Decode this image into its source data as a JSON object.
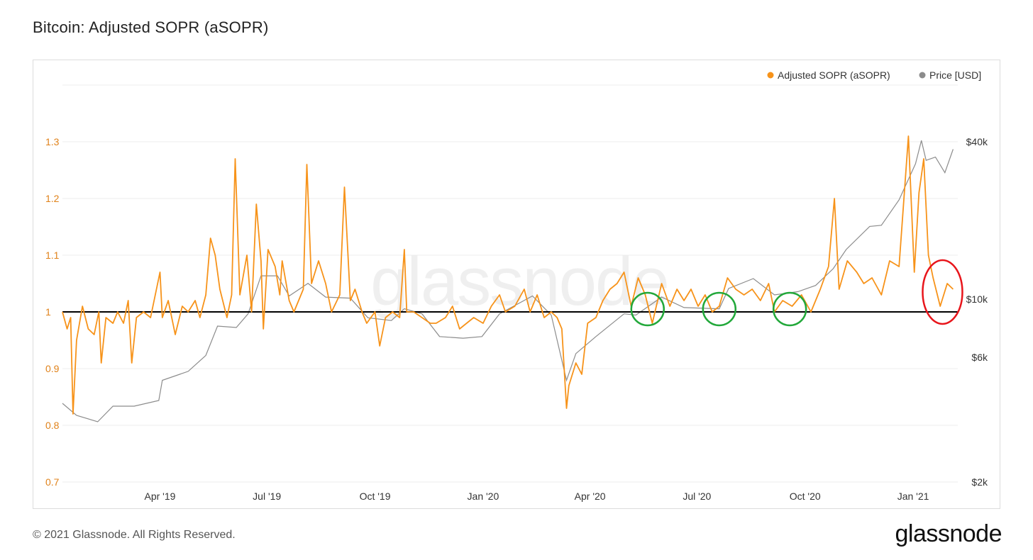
{
  "header": {
    "title": "Bitcoin: Adjusted SOPR (aSOPR)"
  },
  "footer": {
    "copyright": "© 2021 Glassnode. All Rights Reserved.",
    "logo": "glassnode"
  },
  "watermark": "glassnode",
  "colors": {
    "asopr": "#f7931a",
    "price": "#8c8c8c",
    "tick_left": "#e0821a",
    "baseline": "#000000",
    "circle_green": "#22a83a",
    "circle_red": "#e8151b"
  },
  "chart_data": {
    "type": "line",
    "title": "Bitcoin: Adjusted SOPR (aSOPR)",
    "x_range": [
      "2019-01-08",
      "2021-02-08"
    ],
    "x_ticks": [
      {
        "label": "Apr '19",
        "date": "2019-04-01"
      },
      {
        "label": "Jul '19",
        "date": "2019-07-01"
      },
      {
        "label": "Oct '19",
        "date": "2019-10-01"
      },
      {
        "label": "Jan '20",
        "date": "2020-01-01"
      },
      {
        "label": "Apr '20",
        "date": "2020-04-01"
      },
      {
        "label": "Jul '20",
        "date": "2020-07-01"
      },
      {
        "label": "Oct '20",
        "date": "2020-10-01"
      },
      {
        "label": "Jan '21",
        "date": "2021-01-01"
      }
    ],
    "y_left": {
      "ticks": [
        {
          "v": 0.7,
          "label": "0.7"
        },
        {
          "v": 0.8,
          "label": "0.8"
        },
        {
          "v": 0.9,
          "label": "0.9"
        },
        {
          "v": 1.0,
          "label": "1"
        },
        {
          "v": 1.1,
          "label": "1.1"
        },
        {
          "v": 1.2,
          "label": "1.2"
        },
        {
          "v": 1.3,
          "label": "1.3"
        }
      ],
      "range": [
        0.7,
        1.4
      ]
    },
    "y_right": {
      "scale": "log",
      "ticks": [
        {
          "v": 2000,
          "label": "$2k"
        },
        {
          "v": 6000,
          "label": "$6k"
        },
        {
          "v": 10000,
          "label": "$10k"
        },
        {
          "v": 40000,
          "label": "$40k"
        }
      ],
      "range": [
        2000,
        66000
      ]
    },
    "legend": {
      "placement": "top-right"
    },
    "grid": true,
    "reference_line": {
      "y": 1.0
    },
    "series": [
      {
        "name": "Adjusted SOPR (aSOPR)",
        "axis": "left",
        "points": [
          [
            "2019-01-08",
            1.0
          ],
          [
            "2019-01-12",
            0.97
          ],
          [
            "2019-01-15",
            0.99
          ],
          [
            "2019-01-17",
            0.82
          ],
          [
            "2019-01-20",
            0.95
          ],
          [
            "2019-01-25",
            1.01
          ],
          [
            "2019-01-30",
            0.97
          ],
          [
            "2019-02-04",
            0.96
          ],
          [
            "2019-02-08",
            1.0
          ],
          [
            "2019-02-10",
            0.91
          ],
          [
            "2019-02-14",
            0.99
          ],
          [
            "2019-02-20",
            0.98
          ],
          [
            "2019-02-24",
            1.0
          ],
          [
            "2019-03-01",
            0.98
          ],
          [
            "2019-03-05",
            1.02
          ],
          [
            "2019-03-08",
            0.91
          ],
          [
            "2019-03-12",
            0.99
          ],
          [
            "2019-03-18",
            1.0
          ],
          [
            "2019-03-24",
            0.99
          ],
          [
            "2019-04-01",
            1.07
          ],
          [
            "2019-04-03",
            0.99
          ],
          [
            "2019-04-08",
            1.02
          ],
          [
            "2019-04-14",
            0.96
          ],
          [
            "2019-04-20",
            1.01
          ],
          [
            "2019-04-25",
            1.0
          ],
          [
            "2019-05-01",
            1.02
          ],
          [
            "2019-05-05",
            0.99
          ],
          [
            "2019-05-10",
            1.03
          ],
          [
            "2019-05-14",
            1.13
          ],
          [
            "2019-05-18",
            1.1
          ],
          [
            "2019-05-22",
            1.04
          ],
          [
            "2019-05-28",
            0.99
          ],
          [
            "2019-06-01",
            1.03
          ],
          [
            "2019-06-04",
            1.27
          ],
          [
            "2019-06-08",
            1.03
          ],
          [
            "2019-06-14",
            1.1
          ],
          [
            "2019-06-18",
            1.0
          ],
          [
            "2019-06-22",
            1.19
          ],
          [
            "2019-06-26",
            1.09
          ],
          [
            "2019-06-28",
            0.97
          ],
          [
            "2019-07-02",
            1.11
          ],
          [
            "2019-07-08",
            1.08
          ],
          [
            "2019-07-12",
            1.03
          ],
          [
            "2019-07-14",
            1.09
          ],
          [
            "2019-07-20",
            1.02
          ],
          [
            "2019-07-24",
            1.0
          ],
          [
            "2019-08-01",
            1.04
          ],
          [
            "2019-08-04",
            1.26
          ],
          [
            "2019-08-08",
            1.05
          ],
          [
            "2019-08-14",
            1.09
          ],
          [
            "2019-08-20",
            1.05
          ],
          [
            "2019-08-25",
            1.0
          ],
          [
            "2019-09-01",
            1.03
          ],
          [
            "2019-09-05",
            1.22
          ],
          [
            "2019-09-10",
            1.02
          ],
          [
            "2019-09-14",
            1.04
          ],
          [
            "2019-09-20",
            1.0
          ],
          [
            "2019-09-24",
            0.98
          ],
          [
            "2019-10-01",
            1.0
          ],
          [
            "2019-10-05",
            0.94
          ],
          [
            "2019-10-10",
            0.99
          ],
          [
            "2019-10-16",
            1.0
          ],
          [
            "2019-10-22",
            0.99
          ],
          [
            "2019-10-26",
            1.11
          ],
          [
            "2019-10-28",
            1.0
          ],
          [
            "2019-11-03",
            1.0
          ],
          [
            "2019-11-10",
            0.99
          ],
          [
            "2019-11-17",
            0.98
          ],
          [
            "2019-11-22",
            0.98
          ],
          [
            "2019-11-30",
            0.99
          ],
          [
            "2019-12-06",
            1.01
          ],
          [
            "2019-12-12",
            0.97
          ],
          [
            "2019-12-18",
            0.98
          ],
          [
            "2019-12-24",
            0.99
          ],
          [
            "2020-01-01",
            0.98
          ],
          [
            "2020-01-08",
            1.01
          ],
          [
            "2020-01-15",
            1.03
          ],
          [
            "2020-01-20",
            1.0
          ],
          [
            "2020-01-28",
            1.01
          ],
          [
            "2020-02-05",
            1.04
          ],
          [
            "2020-02-10",
            1.0
          ],
          [
            "2020-02-16",
            1.03
          ],
          [
            "2020-02-22",
            0.99
          ],
          [
            "2020-02-28",
            1.0
          ],
          [
            "2020-03-04",
            0.99
          ],
          [
            "2020-03-08",
            0.97
          ],
          [
            "2020-03-12",
            0.83
          ],
          [
            "2020-03-14",
            0.87
          ],
          [
            "2020-03-20",
            0.91
          ],
          [
            "2020-03-25",
            0.89
          ],
          [
            "2020-03-30",
            0.98
          ],
          [
            "2020-04-06",
            0.99
          ],
          [
            "2020-04-12",
            1.02
          ],
          [
            "2020-04-18",
            1.04
          ],
          [
            "2020-04-24",
            1.05
          ],
          [
            "2020-04-30",
            1.07
          ],
          [
            "2020-05-06",
            1.01
          ],
          [
            "2020-05-12",
            1.06
          ],
          [
            "2020-05-18",
            1.03
          ],
          [
            "2020-05-24",
            0.98
          ],
          [
            "2020-06-01",
            1.05
          ],
          [
            "2020-06-08",
            1.01
          ],
          [
            "2020-06-14",
            1.04
          ],
          [
            "2020-06-20",
            1.02
          ],
          [
            "2020-06-26",
            1.04
          ],
          [
            "2020-07-02",
            1.01
          ],
          [
            "2020-07-08",
            1.03
          ],
          [
            "2020-07-14",
            1.0
          ],
          [
            "2020-07-20",
            1.01
          ],
          [
            "2020-07-27",
            1.06
          ],
          [
            "2020-08-03",
            1.04
          ],
          [
            "2020-08-10",
            1.03
          ],
          [
            "2020-08-17",
            1.04
          ],
          [
            "2020-08-24",
            1.02
          ],
          [
            "2020-08-31",
            1.05
          ],
          [
            "2020-09-05",
            1.0
          ],
          [
            "2020-09-12",
            1.02
          ],
          [
            "2020-09-20",
            1.01
          ],
          [
            "2020-09-28",
            1.03
          ],
          [
            "2020-10-06",
            1.0
          ],
          [
            "2020-10-14",
            1.04
          ],
          [
            "2020-10-21",
            1.08
          ],
          [
            "2020-10-26",
            1.2
          ],
          [
            "2020-10-30",
            1.04
          ],
          [
            "2020-11-06",
            1.09
          ],
          [
            "2020-11-14",
            1.07
          ],
          [
            "2020-11-20",
            1.05
          ],
          [
            "2020-11-27",
            1.06
          ],
          [
            "2020-12-05",
            1.03
          ],
          [
            "2020-12-12",
            1.09
          ],
          [
            "2020-12-20",
            1.08
          ],
          [
            "2020-12-28",
            1.31
          ],
          [
            "2021-01-02",
            1.07
          ],
          [
            "2021-01-06",
            1.21
          ],
          [
            "2021-01-10",
            1.27
          ],
          [
            "2021-01-14",
            1.1
          ],
          [
            "2021-01-18",
            1.06
          ],
          [
            "2021-01-24",
            1.01
          ],
          [
            "2021-01-30",
            1.05
          ],
          [
            "2021-02-04",
            1.04
          ]
        ]
      },
      {
        "name": "Price [USD]",
        "axis": "right",
        "points": [
          [
            "2019-01-08",
            4000
          ],
          [
            "2019-01-20",
            3600
          ],
          [
            "2019-02-07",
            3400
          ],
          [
            "2019-02-20",
            3900
          ],
          [
            "2019-03-10",
            3900
          ],
          [
            "2019-03-31",
            4100
          ],
          [
            "2019-04-03",
            4900
          ],
          [
            "2019-04-25",
            5300
          ],
          [
            "2019-05-10",
            6100
          ],
          [
            "2019-05-20",
            7900
          ],
          [
            "2019-06-05",
            7800
          ],
          [
            "2019-06-15",
            8800
          ],
          [
            "2019-06-26",
            12300
          ],
          [
            "2019-07-10",
            12300
          ],
          [
            "2019-07-20",
            10300
          ],
          [
            "2019-08-05",
            11500
          ],
          [
            "2019-08-20",
            10200
          ],
          [
            "2019-09-10",
            10100
          ],
          [
            "2019-09-25",
            8500
          ],
          [
            "2019-10-15",
            8300
          ],
          [
            "2019-10-26",
            9200
          ],
          [
            "2019-11-10",
            8800
          ],
          [
            "2019-11-25",
            7200
          ],
          [
            "2019-12-15",
            7100
          ],
          [
            "2019-12-31",
            7200
          ],
          [
            "2020-01-15",
            8800
          ],
          [
            "2020-02-12",
            10300
          ],
          [
            "2020-02-28",
            8700
          ],
          [
            "2020-03-12",
            4900
          ],
          [
            "2020-03-20",
            6200
          ],
          [
            "2020-04-06",
            7200
          ],
          [
            "2020-04-30",
            8800
          ],
          [
            "2020-05-10",
            8700
          ],
          [
            "2020-06-01",
            10200
          ],
          [
            "2020-06-20",
            9300
          ],
          [
            "2020-07-20",
            9200
          ],
          [
            "2020-07-28",
            11000
          ],
          [
            "2020-08-18",
            12000
          ],
          [
            "2020-09-05",
            10400
          ],
          [
            "2020-09-25",
            10700
          ],
          [
            "2020-10-10",
            11300
          ],
          [
            "2020-10-25",
            13100
          ],
          [
            "2020-11-05",
            15500
          ],
          [
            "2020-11-25",
            19000
          ],
          [
            "2020-12-05",
            19200
          ],
          [
            "2020-12-20",
            24000
          ],
          [
            "2021-01-03",
            33000
          ],
          [
            "2021-01-08",
            40500
          ],
          [
            "2021-01-12",
            34000
          ],
          [
            "2021-01-20",
            35000
          ],
          [
            "2021-01-28",
            30500
          ],
          [
            "2021-02-04",
            37500
          ]
        ]
      }
    ],
    "annotations": [
      {
        "shape": "circle",
        "color": "green",
        "date": "2020-05-20",
        "y": 1.005
      },
      {
        "shape": "circle",
        "color": "green",
        "date": "2020-07-20",
        "y": 1.005
      },
      {
        "shape": "circle",
        "color": "green",
        "date": "2020-09-18",
        "y": 1.005
      },
      {
        "shape": "ellipse",
        "color": "red",
        "date": "2021-01-26",
        "y": 1.035
      }
    ]
  },
  "legend_items": [
    {
      "label": "Adjusted SOPR (aSOPR)",
      "color": "#f7931a"
    },
    {
      "label": "Price [USD]",
      "color": "#8c8c8c"
    }
  ]
}
